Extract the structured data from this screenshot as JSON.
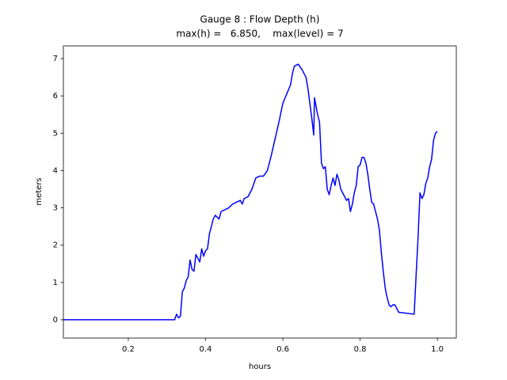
{
  "chart_data": {
    "type": "line",
    "title": "Gauge 8 : Flow Depth (h)",
    "subtitle": "max(h) =   6.850,    max(level) = 7",
    "xlabel": "hours",
    "ylabel": "meters",
    "color": "#0000ff",
    "x": [
      0.032,
      0.32,
      0.325,
      0.33,
      0.335,
      0.34,
      0.345,
      0.35,
      0.355,
      0.36,
      0.365,
      0.37,
      0.375,
      0.38,
      0.385,
      0.39,
      0.395,
      0.4,
      0.405,
      0.41,
      0.42,
      0.425,
      0.43,
      0.435,
      0.44,
      0.45,
      0.46,
      0.47,
      0.48,
      0.49,
      0.495,
      0.5,
      0.51,
      0.52,
      0.53,
      0.54,
      0.55,
      0.56,
      0.57,
      0.58,
      0.59,
      0.6,
      0.61,
      0.62,
      0.625,
      0.63,
      0.64,
      0.65,
      0.66,
      0.665,
      0.67,
      0.675,
      0.68,
      0.682,
      0.69,
      0.695,
      0.7,
      0.705,
      0.71,
      0.715,
      0.72,
      0.725,
      0.73,
      0.735,
      0.74,
      0.745,
      0.75,
      0.76,
      0.765,
      0.77,
      0.775,
      0.78,
      0.785,
      0.79,
      0.795,
      0.8,
      0.805,
      0.81,
      0.815,
      0.82,
      0.825,
      0.83,
      0.835,
      0.84,
      0.845,
      0.85,
      0.855,
      0.86,
      0.865,
      0.87,
      0.875,
      0.88,
      0.885,
      0.89,
      0.9,
      0.94,
      0.945,
      0.95,
      0.955,
      0.96,
      0.965,
      0.97,
      0.975,
      0.98,
      0.985,
      0.99,
      0.995,
      1.0
    ],
    "values": [
      0,
      0,
      0.15,
      0.05,
      0.1,
      0.75,
      0.85,
      1.05,
      1.15,
      1.6,
      1.35,
      1.3,
      1.75,
      1.65,
      1.55,
      1.9,
      1.7,
      1.85,
      1.9,
      2.3,
      2.7,
      2.8,
      2.75,
      2.7,
      2.9,
      2.95,
      3.0,
      3.1,
      3.15,
      3.2,
      3.1,
      3.25,
      3.3,
      3.5,
      3.8,
      3.85,
      3.85,
      4.0,
      4.4,
      4.85,
      5.3,
      5.8,
      6.05,
      6.3,
      6.6,
      6.8,
      6.85,
      6.7,
      6.5,
      6.2,
      5.8,
      5.4,
      4.95,
      5.95,
      5.5,
      5.3,
      4.2,
      4.05,
      4.1,
      3.5,
      3.35,
      3.6,
      3.8,
      3.6,
      3.9,
      3.75,
      3.5,
      3.3,
      3.2,
      3.25,
      2.9,
      3.1,
      3.4,
      3.6,
      4.1,
      4.15,
      4.35,
      4.35,
      4.2,
      3.9,
      3.5,
      3.15,
      3.1,
      2.9,
      2.7,
      2.4,
      1.8,
      1.3,
      0.85,
      0.6,
      0.4,
      0.35,
      0.4,
      0.4,
      0.2,
      0.15,
      1.2,
      2.2,
      3.4,
      3.25,
      3.35,
      3.65,
      3.8,
      4.1,
      4.3,
      4.8,
      5.0,
      5.05
    ],
    "xlim": [
      0.032,
      1.049
    ],
    "ylim": [
      -0.49,
      7.34
    ],
    "xticks": [
      0.2,
      0.4,
      0.6,
      0.8,
      {
        "value": 1,
        "label": "1.0"
      }
    ],
    "yticks": [
      0,
      1,
      2,
      3,
      4,
      5,
      6,
      7
    ]
  }
}
